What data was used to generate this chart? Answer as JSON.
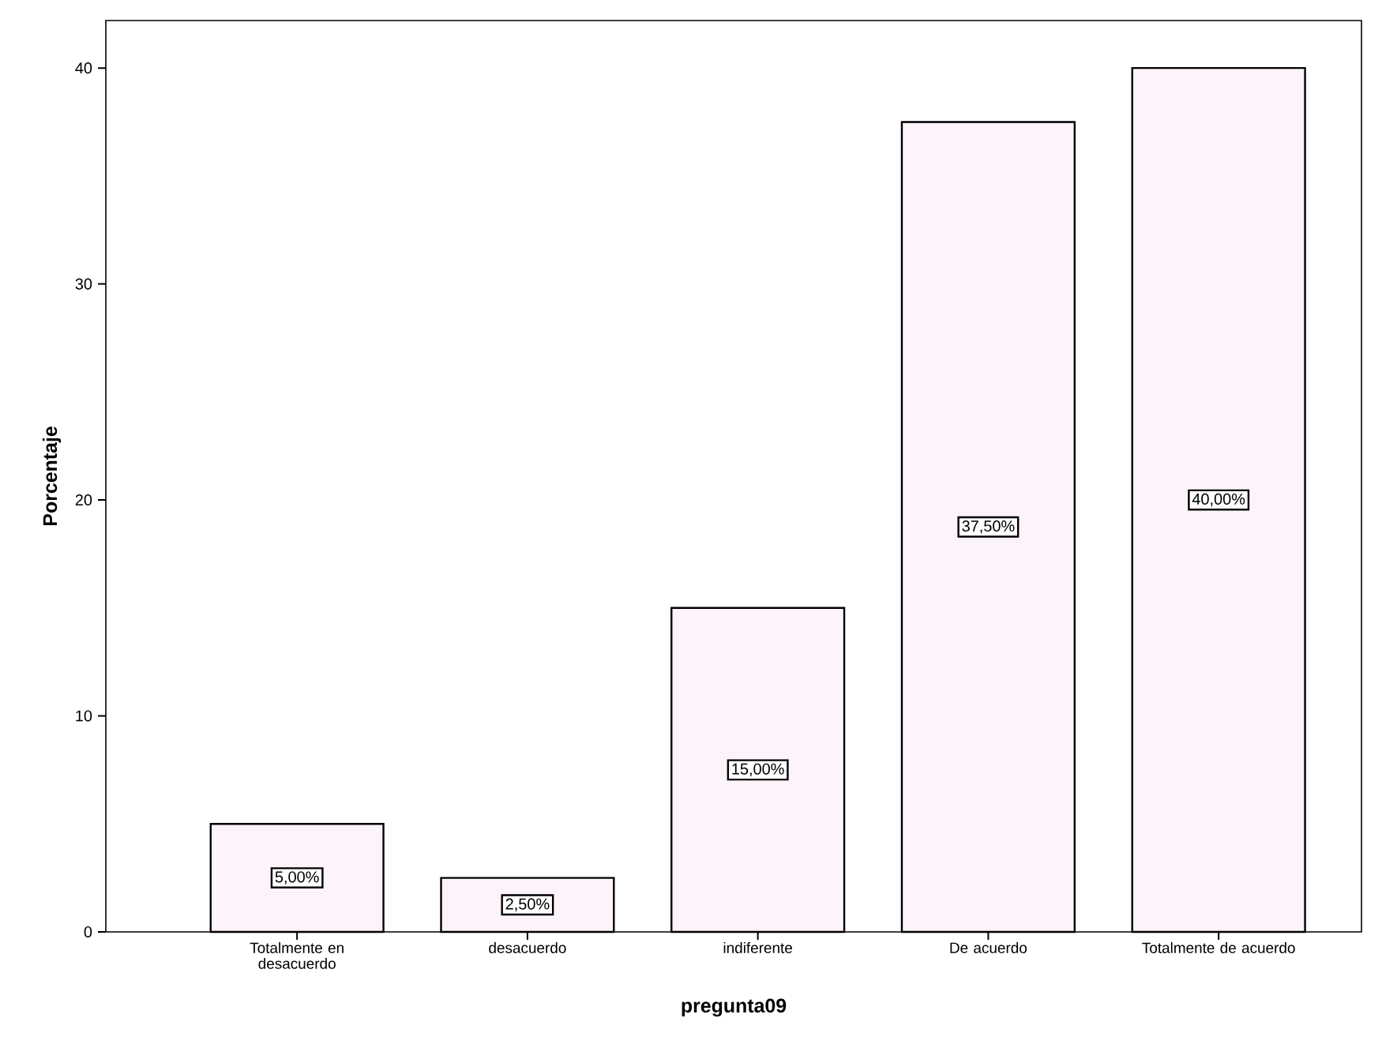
{
  "chart_data": {
    "type": "bar",
    "xlabel": "pregunta09",
    "ylabel": "Porcentaje",
    "categories": [
      "Totalmente en desacuerdo",
      "desacuerdo",
      "indiferente",
      "De acuerdo",
      "Totalmente de acuerdo"
    ],
    "values": [
      5,
      2.5,
      15,
      37.5,
      40
    ],
    "value_labels": [
      "5,00%",
      "2,50%",
      "15,00%",
      "37,50%",
      "40,00%"
    ],
    "color": "#fdf3fb",
    "ylim": [
      0,
      42.2
    ],
    "yticks": [
      0,
      10,
      20,
      30,
      40
    ],
    "grid": false
  }
}
